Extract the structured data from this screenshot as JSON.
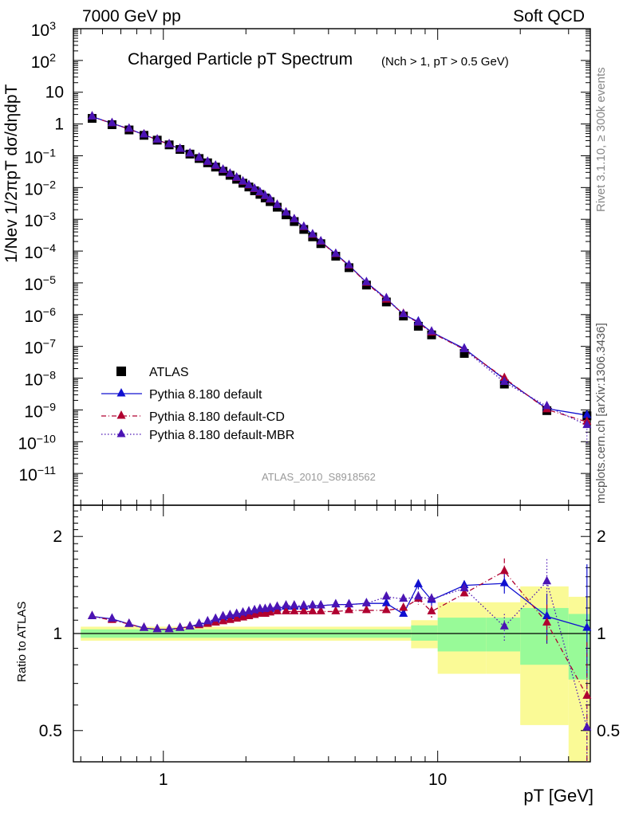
{
  "header": {
    "left": "7000 GeV pp",
    "right": "Soft QCD"
  },
  "side_text": {
    "rivet": "Rivet 3.1.10, ≥ 300k events",
    "mcplots": "mcplots.cern.ch [arXiv:1306.3436]"
  },
  "analysis_tag": "ATLAS_2010_S8918562",
  "colors": {
    "atlas": "#000000",
    "default": "#1010d0",
    "cd": "#b00030",
    "mbr": "#4b14b4",
    "band_inner": "#98fa98",
    "band_outer": "#fafa96"
  },
  "chart_data": [
    {
      "type": "line",
      "title": "Charged Particle pT Spectrum",
      "title_sub": "(Nch > 1, pT > 0.5 GeV)",
      "ylabel": "1/Nev 1/2πpT dσ/dηdpT",
      "xscale": "log",
      "yscale": "log",
      "xlim": [
        0.47,
        36
      ],
      "ylim": [
        1e-12,
        1000
      ],
      "x": [
        0.55,
        0.65,
        0.75,
        0.85,
        0.95,
        1.05,
        1.15,
        1.25,
        1.35,
        1.45,
        1.55,
        1.65,
        1.75,
        1.85,
        1.95,
        2.05,
        2.15,
        2.25,
        2.35,
        2.45,
        2.6,
        2.8,
        3.0,
        3.25,
        3.5,
        3.75,
        4.25,
        4.75,
        5.5,
        6.5,
        7.5,
        8.5,
        9.5,
        12.5,
        17.5,
        25,
        35
      ],
      "series": [
        {
          "name": "ATLAS",
          "marker": "square",
          "values": [
            1.5,
            0.95,
            0.65,
            0.44,
            0.31,
            0.22,
            0.158,
            0.113,
            0.082,
            0.06,
            0.044,
            0.0325,
            0.0243,
            0.0182,
            0.0137,
            0.0104,
            0.0079,
            0.0061,
            0.0047,
            0.0036,
            0.0024,
            0.00138,
            0.00085,
            0.00048,
            0.00028,
            0.000171,
            6.9e-05,
            3e-05,
            8.5e-06,
            2.5e-06,
            9e-07,
            4.3e-07,
            2.3e-07,
            6e-08,
            6.5e-09,
            9.5e-10,
            6.5e-10
          ]
        },
        {
          "name": "Pythia 8.180 default",
          "marker": "triangle",
          "line": "solid",
          "values": [
            1.7,
            1.05,
            0.7,
            0.46,
            0.32,
            0.228,
            0.163,
            0.117,
            0.086,
            0.064,
            0.048,
            0.0358,
            0.0269,
            0.0202,
            0.0153,
            0.0118,
            0.009,
            0.007,
            0.0054,
            0.0042,
            0.0028,
            0.0016,
            0.00099,
            0.00057,
            0.00033,
            0.0002,
            8.1e-05,
            3.56e-05,
            1.03e-05,
            3.15e-06,
            1.02e-06,
            6e-07,
            2.8e-07,
            8.5e-08,
            9.3e-09,
            1.1e-09,
            6.8e-10
          ]
        },
        {
          "name": "Pythia 8.180 default-CD",
          "marker": "triangle",
          "line": "dashdot",
          "values": [
            1.7,
            1.04,
            0.69,
            0.46,
            0.32,
            0.227,
            0.162,
            0.116,
            0.085,
            0.063,
            0.047,
            0.0352,
            0.0264,
            0.0198,
            0.015,
            0.0115,
            0.0088,
            0.0068,
            0.0053,
            0.0041,
            0.0028,
            0.0016,
            0.00098,
            0.00056,
            0.00032,
            0.000195,
            7.9e-05,
            3.45e-05,
            9.9e-06,
            2.92e-06,
            1.05e-06,
            5.5e-07,
            2.7e-07,
            8e-08,
            1e-08,
            1.03e-09,
            4.2e-10
          ]
        },
        {
          "name": "Pythia 8.180 default-MBR",
          "marker": "triangle",
          "line": "dotted",
          "values": [
            1.7,
            1.05,
            0.7,
            0.46,
            0.32,
            0.228,
            0.163,
            0.117,
            0.086,
            0.064,
            0.048,
            0.0358,
            0.0269,
            0.0202,
            0.0153,
            0.0118,
            0.009,
            0.007,
            0.0054,
            0.0042,
            0.0028,
            0.0016,
            0.00099,
            0.00057,
            0.00033,
            0.0002,
            8.1e-05,
            3.56e-05,
            1.03e-05,
            3.25e-06,
            1.02e-06,
            5.6e-07,
            2.9e-07,
            8e-08,
            7.5e-09,
            1.3e-09,
            3.3e-10
          ]
        }
      ]
    },
    {
      "type": "line",
      "ylabel": "Ratio to ATLAS",
      "xlabel": "pT [GeV]",
      "xscale": "log",
      "yscale": "log",
      "xlim": [
        0.47,
        36
      ],
      "ylim": [
        0.4,
        2.5
      ],
      "x": [
        0.55,
        0.65,
        0.75,
        0.85,
        0.95,
        1.05,
        1.15,
        1.25,
        1.35,
        1.45,
        1.55,
        1.65,
        1.75,
        1.85,
        1.95,
        2.05,
        2.15,
        2.25,
        2.35,
        2.45,
        2.6,
        2.8,
        3.0,
        3.25,
        3.5,
        3.75,
        4.25,
        4.75,
        5.5,
        6.5,
        7.5,
        8.5,
        9.5,
        12.5,
        17.5,
        25,
        35
      ],
      "bands": [
        {
          "x": [
            0.5,
            8.0
          ],
          "inner": [
            0.97,
            1.03
          ],
          "outer": [
            0.95,
            1.05
          ]
        },
        {
          "x": [
            8.0,
            10.0
          ],
          "inner": [
            0.95,
            1.06
          ],
          "outer": [
            0.9,
            1.1
          ]
        },
        {
          "x": [
            10.0,
            15.0
          ],
          "inner": [
            0.88,
            1.12
          ],
          "outer": [
            0.75,
            1.25
          ]
        },
        {
          "x": [
            15.0,
            20.0
          ],
          "inner": [
            0.88,
            1.12
          ],
          "outer": [
            0.75,
            1.25
          ]
        },
        {
          "x": [
            20.0,
            30.0
          ],
          "inner": [
            0.8,
            1.2
          ],
          "outer": [
            0.52,
            1.4
          ]
        },
        {
          "x": [
            30.0,
            40.0
          ],
          "inner": [
            0.72,
            1.15
          ],
          "outer": [
            0.4,
            1.3
          ]
        }
      ],
      "series": [
        {
          "name": "Pythia 8.180 default",
          "line": "solid",
          "values": [
            1.13,
            1.11,
            1.07,
            1.04,
            1.03,
            1.03,
            1.04,
            1.05,
            1.07,
            1.08,
            1.1,
            1.12,
            1.13,
            1.14,
            1.15,
            1.16,
            1.17,
            1.18,
            1.18,
            1.19,
            1.2,
            1.21,
            1.21,
            1.21,
            1.22,
            1.22,
            1.23,
            1.23,
            1.24,
            1.24,
            1.15,
            1.42,
            1.27,
            1.41,
            1.43,
            1.13,
            1.04
          ],
          "err_lo": [
            0,
            0,
            0,
            0,
            0,
            0,
            0,
            0,
            0,
            0,
            0,
            0,
            0,
            0,
            0,
            0,
            0,
            0,
            0,
            0,
            0,
            0,
            0,
            0,
            0,
            0,
            0,
            0,
            0,
            0,
            0,
            0.05,
            0.05,
            0.05,
            0.1,
            0.2,
            0.3
          ],
          "err_hi": [
            0,
            0,
            0,
            0,
            0,
            0,
            0,
            0,
            0,
            0,
            0,
            0,
            0,
            0,
            0,
            0,
            0,
            0,
            0,
            0,
            0,
            0,
            0,
            0,
            0,
            0,
            0,
            0,
            0,
            0,
            0,
            0.05,
            0.05,
            0.05,
            0.1,
            0.2,
            0.6
          ]
        },
        {
          "name": "Pythia 8.180 default-CD",
          "line": "dashdot",
          "values": [
            1.13,
            1.1,
            1.07,
            1.04,
            1.03,
            1.03,
            1.04,
            1.05,
            1.06,
            1.07,
            1.08,
            1.09,
            1.1,
            1.11,
            1.12,
            1.13,
            1.14,
            1.15,
            1.15,
            1.16,
            1.17,
            1.17,
            1.17,
            1.17,
            1.17,
            1.17,
            1.17,
            1.18,
            1.18,
            1.18,
            1.2,
            1.28,
            1.17,
            1.33,
            1.56,
            1.08,
            0.64
          ],
          "err_lo": [
            0,
            0,
            0,
            0,
            0,
            0,
            0,
            0,
            0,
            0,
            0,
            0,
            0,
            0,
            0,
            0,
            0,
            0,
            0,
            0,
            0,
            0,
            0,
            0,
            0,
            0,
            0,
            0,
            0,
            0,
            0,
            0.05,
            0.05,
            0.05,
            0.1,
            0.15,
            0.3
          ],
          "err_hi": [
            0,
            0,
            0,
            0,
            0,
            0,
            0,
            0,
            0,
            0,
            0,
            0,
            0,
            0,
            0,
            0,
            0,
            0,
            0,
            0,
            0,
            0,
            0,
            0,
            0,
            0,
            0,
            0,
            0,
            0,
            0,
            0.05,
            0.05,
            0.05,
            0.15,
            0.15,
            0.3
          ]
        },
        {
          "name": "Pythia 8.180 default-MBR",
          "line": "dotted",
          "values": [
            1.13,
            1.11,
            1.07,
            1.04,
            1.03,
            1.03,
            1.04,
            1.05,
            1.07,
            1.09,
            1.11,
            1.13,
            1.14,
            1.15,
            1.16,
            1.17,
            1.18,
            1.19,
            1.19,
            1.2,
            1.21,
            1.22,
            1.22,
            1.22,
            1.22,
            1.22,
            1.23,
            1.23,
            1.24,
            1.3,
            1.28,
            1.3,
            1.28,
            1.38,
            1.05,
            1.45,
            0.51
          ],
          "err_lo": [
            0,
            0,
            0,
            0,
            0,
            0,
            0,
            0,
            0,
            0,
            0,
            0,
            0,
            0,
            0,
            0,
            0,
            0,
            0,
            0,
            0,
            0,
            0,
            0,
            0,
            0,
            0,
            0,
            0,
            0,
            0,
            0.05,
            0.05,
            0.05,
            0.1,
            0.2,
            0.2
          ],
          "err_hi": [
            0,
            0,
            0,
            0,
            0,
            0,
            0,
            0,
            0,
            0,
            0,
            0,
            0,
            0,
            0,
            0,
            0,
            0,
            0,
            0,
            0,
            0,
            0,
            0,
            0,
            0,
            0,
            0,
            0,
            0,
            0,
            0.05,
            0.05,
            0.05,
            0.1,
            0.25,
            0.4
          ]
        }
      ]
    }
  ]
}
